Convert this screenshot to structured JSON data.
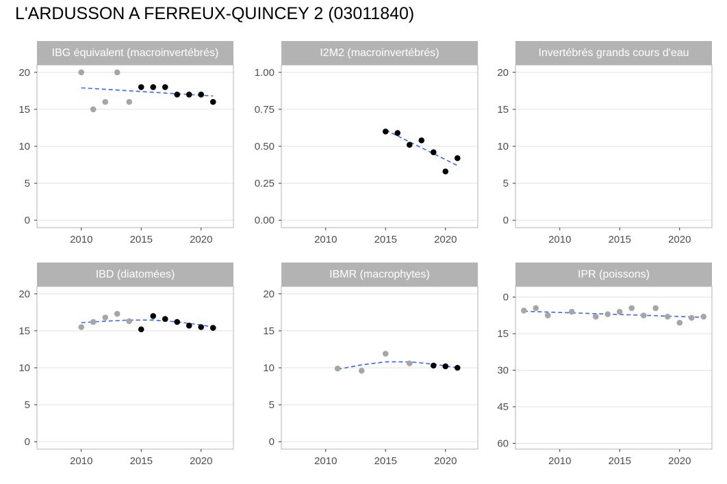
{
  "title": "L'ARDUSSON A FERREUX-QUINCEY 2 (03011840)",
  "colors": {
    "strip": "#b3b3b3",
    "panel_border": "#b3b3b3",
    "grid": "#e0e0e0",
    "point_recent": "#000000",
    "point_old": "#a6a6a6",
    "trend": "#3366ff"
  },
  "chart_data": [
    {
      "type": "scatter",
      "title": "IBG équivalent (macroinvertébrés)",
      "xlim": [
        2006.3,
        2022.7
      ],
      "ylim": [
        -1,
        21
      ],
      "xticks": [
        2010,
        2015,
        2020
      ],
      "yticks": [
        0,
        5,
        10,
        15,
        20
      ],
      "ytick_labels": [
        "0",
        "5",
        "10",
        "15",
        "20"
      ],
      "reverse_y": false,
      "series": [
        {
          "role": "earlier",
          "x": [
            2010,
            2011,
            2012,
            2013,
            2014
          ],
          "y": [
            20,
            15,
            16,
            20,
            16
          ]
        },
        {
          "role": "recent",
          "x": [
            2015,
            2016,
            2017,
            2018,
            2019,
            2020,
            2021
          ],
          "y": [
            18,
            18,
            18,
            17,
            17,
            17,
            16
          ]
        }
      ],
      "trend": {
        "style": "dashed",
        "x": [
          2010,
          2021
        ],
        "y": [
          17.9,
          16.8
        ]
      }
    },
    {
      "type": "scatter",
      "title": "I2M2 (macroinvertébrés)",
      "xlim": [
        2006.3,
        2022.7
      ],
      "ylim": [
        -0.05,
        1.05
      ],
      "xticks": [
        2010,
        2015,
        2020
      ],
      "yticks": [
        0,
        0.25,
        0.5,
        0.75,
        1.0
      ],
      "ytick_labels": [
        "0.00",
        "0.25",
        "0.50",
        "0.75",
        "1.00"
      ],
      "reverse_y": false,
      "series": [
        {
          "role": "recent",
          "x": [
            2015,
            2016,
            2017,
            2018,
            2019,
            2020,
            2021
          ],
          "y": [
            0.6,
            0.59,
            0.51,
            0.54,
            0.46,
            0.33,
            0.42
          ]
        }
      ],
      "trend": {
        "style": "dashed",
        "x": [
          2015,
          2021
        ],
        "y": [
          0.61,
          0.37
        ]
      }
    },
    {
      "type": "scatter",
      "title": "Invertébrés grands cours d'eau",
      "xlim": [
        2006.3,
        2022.7
      ],
      "ylim": [
        -1,
        21
      ],
      "xticks": [
        2010,
        2015,
        2020
      ],
      "yticks": [
        0,
        5,
        10,
        15,
        20
      ],
      "ytick_labels": [
        "0",
        "5",
        "10",
        "15",
        "20"
      ],
      "reverse_y": false,
      "series": []
    },
    {
      "type": "scatter",
      "title": "IBD (diatomées)",
      "xlim": [
        2006.3,
        2022.7
      ],
      "ylim": [
        -1,
        21
      ],
      "xticks": [
        2010,
        2015,
        2020
      ],
      "yticks": [
        0,
        5,
        10,
        15,
        20
      ],
      "ytick_labels": [
        "0",
        "5",
        "10",
        "15",
        "20"
      ],
      "reverse_y": false,
      "series": [
        {
          "role": "earlier",
          "x": [
            2010,
            2011,
            2012,
            2013,
            2014
          ],
          "y": [
            15.5,
            16.2,
            16.8,
            17.3,
            16.3
          ]
        },
        {
          "role": "recent",
          "x": [
            2015,
            2016,
            2017,
            2018,
            2019,
            2020,
            2021
          ],
          "y": [
            15.2,
            17.0,
            16.6,
            16.2,
            15.7,
            15.5,
            15.4
          ]
        }
      ],
      "trend": {
        "style": "dashed",
        "x": [
          2010,
          2012,
          2014,
          2016,
          2018,
          2020,
          2021
        ],
        "y": [
          16.1,
          16.3,
          16.45,
          16.45,
          16.2,
          15.8,
          15.5
        ]
      }
    },
    {
      "type": "scatter",
      "title": "IBMR (macrophytes)",
      "xlim": [
        2006.3,
        2022.7
      ],
      "ylim": [
        -1,
        21
      ],
      "xticks": [
        2010,
        2015,
        2020
      ],
      "yticks": [
        0,
        5,
        10,
        15,
        20
      ],
      "ytick_labels": [
        "0",
        "5",
        "10",
        "15",
        "20"
      ],
      "reverse_y": false,
      "series": [
        {
          "role": "earlier",
          "x": [
            2011,
            2013,
            2015,
            2017
          ],
          "y": [
            9.9,
            9.6,
            11.9,
            10.6
          ]
        },
        {
          "role": "recent",
          "x": [
            2019,
            2020,
            2021
          ],
          "y": [
            10.3,
            10.2,
            10.0
          ]
        }
      ],
      "trend": {
        "style": "dashed",
        "x": [
          2011,
          2013,
          2015,
          2017,
          2019,
          2021
        ],
        "y": [
          9.8,
          10.4,
          10.8,
          10.8,
          10.5,
          10.0
        ]
      }
    },
    {
      "type": "scatter",
      "title": "IPR (poissons)",
      "xlim": [
        2006.3,
        2022.7
      ],
      "ylim": [
        62.4,
        -4.4
      ],
      "xticks": [
        2010,
        2015,
        2020
      ],
      "yticks": [
        0,
        15,
        30,
        45,
        60
      ],
      "ytick_labels": [
        "0",
        "15",
        "30",
        "45",
        "60"
      ],
      "reverse_y": true,
      "series": [
        {
          "role": "earlier",
          "x": [
            2007,
            2008,
            2009,
            2011,
            2013,
            2014,
            2015,
            2016,
            2017,
            2018,
            2019,
            2020,
            2021,
            2022
          ],
          "y": [
            5.5,
            4.5,
            7.5,
            6.0,
            8.0,
            7.0,
            6.0,
            4.5,
            7.5,
            4.5,
            8.0,
            10.5,
            8.5,
            8.0
          ]
        }
      ],
      "trend": {
        "style": "dashed",
        "x": [
          2007,
          2022
        ],
        "y": [
          5.8,
          8.3
        ]
      }
    }
  ]
}
